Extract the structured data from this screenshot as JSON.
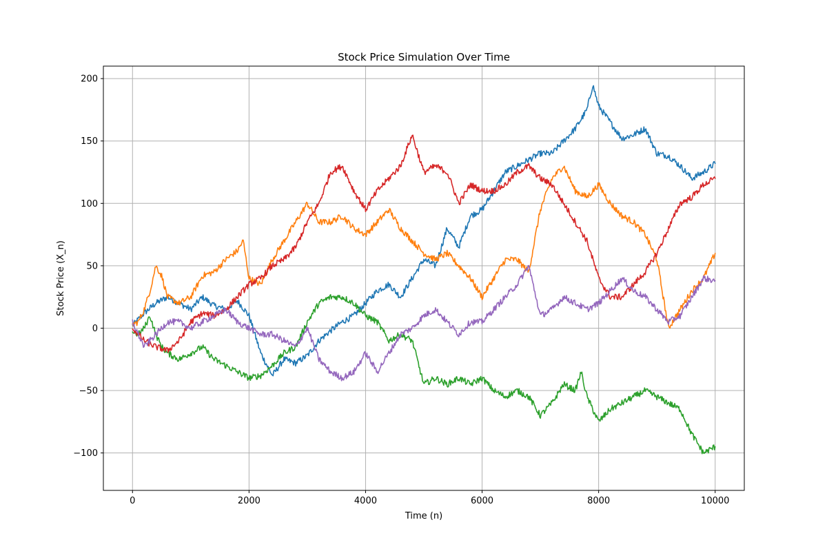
{
  "chart_data": {
    "type": "line",
    "title": "Stock Price Simulation Over Time",
    "xlabel": "Time (n)",
    "ylabel": "Stock Price (X_n)",
    "xlim": [
      -500,
      10500
    ],
    "ylim": [
      -130,
      210
    ],
    "xticks": [
      0,
      2000,
      4000,
      6000,
      8000,
      10000
    ],
    "xtick_labels": [
      "0",
      "2000",
      "4000",
      "6000",
      "8000",
      "10000"
    ],
    "yticks": [
      -100,
      -50,
      0,
      50,
      100,
      150,
      200
    ],
    "ytick_labels": [
      "−100",
      "−50",
      "0",
      "50",
      "100",
      "150",
      "200"
    ],
    "grid": true,
    "legend": "none",
    "series": [
      {
        "color": "#1f77b4",
        "x": [
          0,
          200,
          400,
          600,
          800,
          1000,
          1200,
          1400,
          1600,
          1800,
          2000,
          2200,
          2400,
          2600,
          2800,
          3000,
          3200,
          3400,
          3600,
          3800,
          4000,
          4200,
          4400,
          4600,
          4800,
          5000,
          5200,
          5400,
          5600,
          5800,
          6000,
          6200,
          6400,
          6600,
          6800,
          7000,
          7200,
          7400,
          7600,
          7800,
          7900,
          8000,
          8200,
          8400,
          8600,
          8800,
          9000,
          9200,
          9400,
          9600,
          9800,
          10000
        ],
        "y": [
          2,
          12,
          20,
          25,
          20,
          15,
          25,
          18,
          15,
          22,
          10,
          -20,
          -38,
          -25,
          -28,
          -22,
          -10,
          -2,
          5,
          10,
          20,
          30,
          35,
          25,
          40,
          55,
          50,
          80,
          65,
          90,
          95,
          110,
          125,
          130,
          135,
          140,
          140,
          150,
          160,
          175,
          195,
          178,
          165,
          152,
          155,
          160,
          140,
          138,
          130,
          120,
          125,
          132
        ]
      },
      {
        "color": "#ff7f0e",
        "x": [
          0,
          100,
          200,
          300,
          400,
          500,
          600,
          800,
          1000,
          1200,
          1400,
          1600,
          1800,
          1900,
          2000,
          2200,
          2400,
          2600,
          2800,
          3000,
          3200,
          3400,
          3600,
          3800,
          4000,
          4200,
          4400,
          4600,
          4800,
          5000,
          5200,
          5400,
          5600,
          5800,
          6000,
          6200,
          6400,
          6600,
          6800,
          7000,
          7200,
          7400,
          7600,
          7800,
          8000,
          8200,
          8400,
          8600,
          8800,
          9000,
          9200,
          9400,
          9600,
          9800,
          10000
        ],
        "y": [
          3,
          5,
          15,
          30,
          50,
          42,
          25,
          20,
          25,
          42,
          45,
          55,
          62,
          70,
          40,
          35,
          55,
          70,
          85,
          100,
          85,
          85,
          90,
          80,
          75,
          85,
          95,
          80,
          70,
          60,
          55,
          60,
          50,
          40,
          25,
          40,
          55,
          55,
          45,
          95,
          120,
          130,
          110,
          105,
          115,
          100,
          90,
          85,
          75,
          55,
          0,
          15,
          30,
          40,
          60
        ]
      },
      {
        "color": "#2ca02c",
        "x": [
          0,
          100,
          200,
          300,
          400,
          500,
          600,
          800,
          1000,
          1200,
          1400,
          1600,
          1800,
          2000,
          2200,
          2400,
          2600,
          2800,
          3000,
          3200,
          3400,
          3600,
          3800,
          4000,
          4200,
          4400,
          4600,
          4800,
          5000,
          5200,
          5400,
          5600,
          5800,
          6000,
          6200,
          6400,
          6600,
          6800,
          7000,
          7200,
          7400,
          7600,
          7700,
          7800,
          8000,
          8200,
          8400,
          8600,
          8800,
          9000,
          9200,
          9400,
          9600,
          9800,
          10000
        ],
        "y": [
          -3,
          -5,
          0,
          10,
          -5,
          -15,
          -20,
          -25,
          -20,
          -15,
          -25,
          -30,
          -35,
          -40,
          -38,
          -30,
          -20,
          -15,
          5,
          20,
          25,
          25,
          20,
          10,
          5,
          -10,
          -5,
          -10,
          -45,
          -40,
          -45,
          -40,
          -45,
          -40,
          -50,
          -55,
          -50,
          -55,
          -70,
          -60,
          -45,
          -50,
          -35,
          -55,
          -75,
          -65,
          -60,
          -55,
          -50,
          -55,
          -60,
          -65,
          -85,
          -100,
          -95
        ]
      },
      {
        "color": "#d62728",
        "x": [
          0,
          100,
          200,
          400,
          600,
          800,
          1000,
          1200,
          1400,
          1600,
          1800,
          2000,
          2200,
          2400,
          2600,
          2800,
          3000,
          3200,
          3400,
          3600,
          3800,
          4000,
          4200,
          4400,
          4600,
          4800,
          5000,
          5200,
          5400,
          5600,
          5800,
          6000,
          6200,
          6400,
          6600,
          6800,
          7000,
          7200,
          7400,
          7600,
          7800,
          8000,
          8200,
          8400,
          8600,
          8800,
          9000,
          9200,
          9400,
          9600,
          9800,
          10000
        ],
        "y": [
          0,
          -5,
          -10,
          -15,
          -18,
          -10,
          5,
          12,
          10,
          15,
          25,
          35,
          40,
          50,
          55,
          65,
          85,
          100,
          125,
          130,
          110,
          95,
          110,
          120,
          130,
          155,
          125,
          130,
          125,
          100,
          115,
          110,
          110,
          115,
          125,
          130,
          120,
          115,
          100,
          85,
          70,
          40,
          25,
          25,
          35,
          45,
          60,
          80,
          100,
          105,
          115,
          120
        ]
      },
      {
        "color": "#9467bd",
        "x": [
          0,
          100,
          200,
          400,
          600,
          800,
          1000,
          1200,
          1400,
          1600,
          1800,
          2000,
          2200,
          2400,
          2600,
          2800,
          3000,
          3200,
          3400,
          3600,
          3800,
          4000,
          4200,
          4400,
          4600,
          4800,
          5000,
          5200,
          5400,
          5600,
          5800,
          6000,
          6200,
          6400,
          6600,
          6800,
          7000,
          7200,
          7400,
          7600,
          7800,
          8000,
          8200,
          8400,
          8600,
          8800,
          9000,
          9200,
          9400,
          9600,
          9800,
          10000
        ],
        "y": [
          5,
          -5,
          -15,
          -5,
          5,
          5,
          0,
          5,
          10,
          15,
          5,
          0,
          -5,
          -5,
          -10,
          -15,
          0,
          -25,
          -35,
          -40,
          -35,
          -20,
          -35,
          -20,
          -5,
          0,
          10,
          15,
          5,
          -5,
          5,
          5,
          15,
          25,
          35,
          50,
          10,
          15,
          25,
          20,
          15,
          20,
          30,
          40,
          30,
          25,
          15,
          5,
          10,
          25,
          40,
          38
        ]
      }
    ]
  }
}
